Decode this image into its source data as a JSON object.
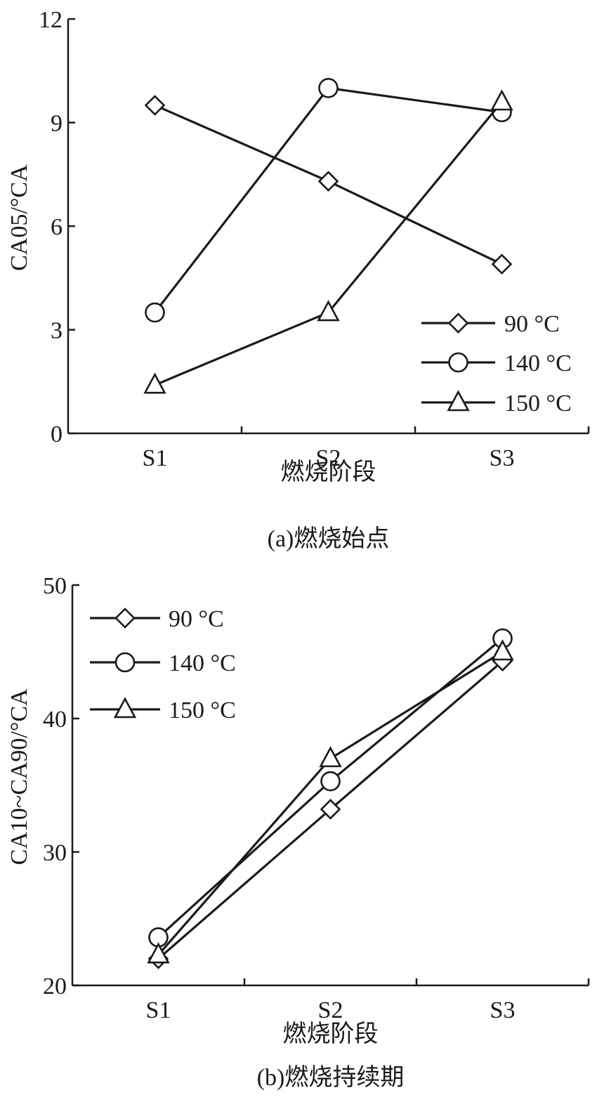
{
  "chart_data": [
    {
      "type": "line",
      "caption": "(a)燃烧始点",
      "xlabel": "燃烧阶段",
      "ylabel": "CA05/°CA",
      "categories": [
        "S1",
        "S2",
        "S3"
      ],
      "ylim": [
        0,
        12
      ],
      "yticks": [
        "0",
        "3",
        "6",
        "9",
        "12"
      ],
      "legend_position": "bottom-right",
      "series": [
        {
          "name": "90 °C",
          "marker": "diamond",
          "values": [
            9.5,
            7.3,
            4.9
          ]
        },
        {
          "name": "140 °C",
          "marker": "circle",
          "values": [
            3.5,
            10.0,
            9.3
          ]
        },
        {
          "name": "150 °C",
          "marker": "triangle",
          "values": [
            1.4,
            3.5,
            9.6
          ]
        }
      ]
    },
    {
      "type": "line",
      "caption": "(b)燃烧持续期",
      "xlabel": "燃烧阶段",
      "ylabel": "CA10~CA90/°CA",
      "categories": [
        "S1",
        "S2",
        "S3"
      ],
      "ylim": [
        20,
        50
      ],
      "yticks": [
        "20",
        "30",
        "40",
        "50"
      ],
      "legend_position": "top-left",
      "series": [
        {
          "name": "90 °C",
          "marker": "diamond",
          "values": [
            22.0,
            33.2,
            44.3
          ]
        },
        {
          "name": "140 °C",
          "marker": "circle",
          "values": [
            23.6,
            35.3,
            46.0
          ]
        },
        {
          "name": "150 °C",
          "marker": "triangle",
          "values": [
            22.3,
            37.0,
            45.0
          ]
        }
      ]
    }
  ]
}
